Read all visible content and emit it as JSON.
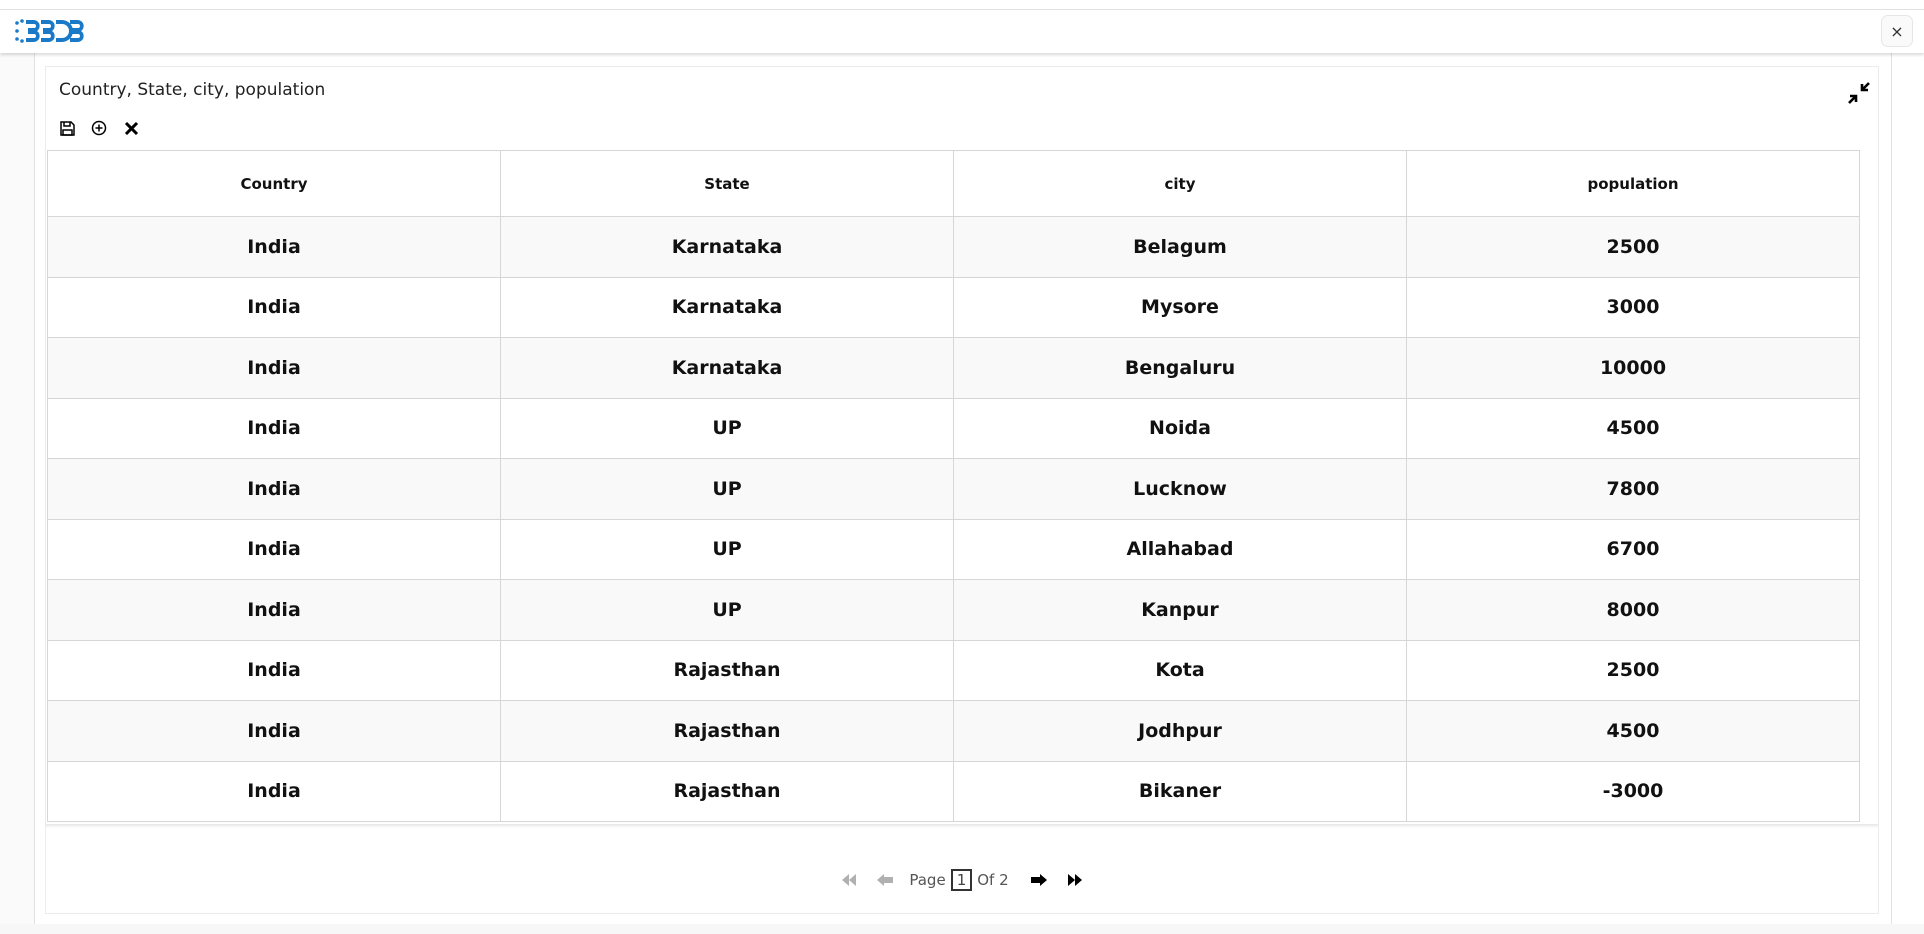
{
  "header": {
    "logo": "BDB",
    "close_label": "×"
  },
  "card": {
    "title": "Country, State, city, population",
    "toolbar": {
      "icons": [
        "save-icon",
        "add-circle-icon",
        "close-icon"
      ]
    }
  },
  "table": {
    "columns": [
      "Country",
      "State",
      "city",
      "population"
    ],
    "rows": [
      [
        "India",
        "Karnataka",
        "Belagum",
        "2500"
      ],
      [
        "India",
        "Karnataka",
        "Mysore",
        "3000"
      ],
      [
        "India",
        "Karnataka",
        "Bengaluru",
        "10000"
      ],
      [
        "India",
        "UP",
        "Noida",
        "4500"
      ],
      [
        "India",
        "UP",
        "Lucknow",
        "7800"
      ],
      [
        "India",
        "UP",
        "Allahabad",
        "6700"
      ],
      [
        "India",
        "UP",
        "Kanpur",
        "8000"
      ],
      [
        "India",
        "Rajasthan",
        "Kota",
        "2500"
      ],
      [
        "India",
        "Rajasthan",
        "Jodhpur",
        "4500"
      ],
      [
        "India",
        "Rajasthan",
        "Bikaner",
        "-3000"
      ]
    ]
  },
  "pagination": {
    "page_label": "Page",
    "current_page": "1",
    "of_label": "Of 2"
  },
  "colors": {
    "logo_blue": "#1a7ac8",
    "disabled": "#b0b0b0"
  }
}
